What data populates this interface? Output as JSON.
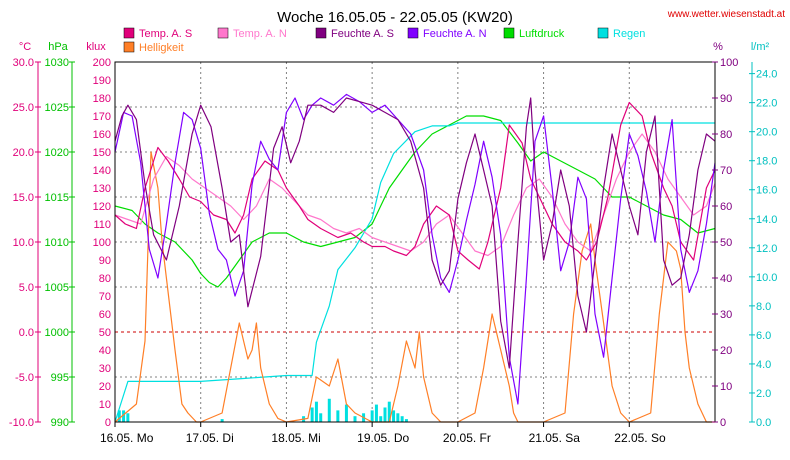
{
  "chart_data": {
    "type": "line",
    "title": "Woche 16.05.05 - 22.05.05 (KW20)",
    "source": "www.wetter.wiesenstadt.at",
    "x_tick_labels": [
      "16.05.  Mo",
      "17.05.  Di",
      "18.05.  Mi",
      "19.05.  Do",
      "20.05.  Fr",
      "21.05.  Sa",
      "22.05.  So"
    ],
    "x_range_days": [
      0,
      7
    ],
    "axes": {
      "temp": {
        "unit": "°C",
        "color": "#e0007a",
        "ticks": [
          "30.0",
          "25.0",
          "20.0",
          "15.0",
          "10.0",
          "5.0",
          "0.0",
          "-5.0",
          "-10.0"
        ],
        "range": [
          -10,
          30
        ]
      },
      "press": {
        "unit": "hPa",
        "color": "#00c000",
        "ticks": [
          "1030",
          "1025",
          "1020",
          "1015",
          "1010",
          "1005",
          "1000",
          "995",
          "990"
        ],
        "range": [
          990,
          1030
        ]
      },
      "light": {
        "unit": "klux",
        "color": "#e0007a",
        "ticks": [
          "200",
          "190",
          "180",
          "170",
          "160",
          "150",
          "140",
          "130",
          "120",
          "110",
          "100",
          "90",
          "80",
          "70",
          "60",
          "50",
          "40",
          "30",
          "20",
          "10",
          "0"
        ],
        "range": [
          0,
          200
        ]
      },
      "hum": {
        "unit": "%",
        "color": "#800080",
        "ticks": [
          "100",
          "90",
          "80",
          "70",
          "60",
          "50",
          "40",
          "30",
          "20",
          "10",
          "0"
        ],
        "range": [
          0,
          100
        ]
      },
      "rain": {
        "unit": "l/m²",
        "color": "#00c0c0",
        "ticks": [
          "24.0",
          "22.0",
          "20.0",
          "18.0",
          "16.0",
          "14.0",
          "12.0",
          "10.0",
          "8.0",
          "6.0",
          "4.0",
          "2.0",
          "0.0"
        ],
        "range": [
          0,
          24.8
        ]
      }
    },
    "grid": true,
    "legend": [
      {
        "name": "Temp. A. S",
        "color": "#e0007a"
      },
      {
        "name": "Temp. A. N",
        "color": "#ff77cc"
      },
      {
        "name": "Feuchte A. S",
        "color": "#800080"
      },
      {
        "name": "Feuchte A. N",
        "color": "#8000ff"
      },
      {
        "name": "Luftdruck",
        "color": "#00dd00"
      },
      {
        "name": "Regen",
        "color": "#00e0e0"
      },
      {
        "name": "Helligkeit",
        "color": "#ff7f27"
      }
    ],
    "series": [
      {
        "name": "Temp. A. S",
        "axis": "temp",
        "color": "#e0007a",
        "x": [
          0,
          0.12,
          0.25,
          0.35,
          0.5,
          0.62,
          0.75,
          0.87,
          1.0,
          1.15,
          1.3,
          1.4,
          1.5,
          1.6,
          1.75,
          1.9,
          2.0,
          2.15,
          2.25,
          2.4,
          2.5,
          2.6,
          2.75,
          2.9,
          3.0,
          3.15,
          3.25,
          3.4,
          3.5,
          3.6,
          3.75,
          3.9,
          4.0,
          4.12,
          4.25,
          4.35,
          4.5,
          4.6,
          4.75,
          4.85,
          5.0,
          5.1,
          5.25,
          5.4,
          5.5,
          5.62,
          5.75,
          5.9,
          6.0,
          6.15,
          6.25,
          6.4,
          6.5,
          6.6,
          6.75,
          6.9,
          7.0
        ],
        "y": [
          13,
          12,
          11.5,
          16,
          20.5,
          19,
          17,
          15,
          14.5,
          13,
          12.5,
          11,
          13,
          17,
          19,
          18,
          16,
          14,
          12.5,
          11.5,
          11,
          10.5,
          11,
          10,
          9.5,
          9.5,
          9,
          8.5,
          9.5,
          12,
          14,
          13,
          9,
          8,
          7,
          10,
          16,
          23,
          21,
          17,
          14,
          12,
          10,
          9,
          8,
          10,
          15,
          23,
          25.5,
          24,
          20,
          16,
          14,
          10,
          8,
          16,
          18
        ]
      },
      {
        "name": "Temp. A. N",
        "axis": "temp",
        "color": "#ff77cc",
        "x": [
          0,
          0.15,
          0.3,
          0.45,
          0.6,
          0.75,
          0.9,
          1.05,
          1.2,
          1.35,
          1.5,
          1.65,
          1.8,
          1.95,
          2.1,
          2.25,
          2.4,
          2.55,
          2.7,
          2.85,
          3.0,
          3.15,
          3.3,
          3.45,
          3.6,
          3.75,
          3.9,
          4.05,
          4.2,
          4.35,
          4.5,
          4.65,
          4.8,
          4.95,
          5.1,
          5.25,
          5.4,
          5.55,
          5.7,
          5.85,
          6.0,
          6.15,
          6.3,
          6.45,
          6.6,
          6.75,
          6.9,
          7.0
        ],
        "y": [
          13,
          12.5,
          12,
          17,
          19.5,
          18.5,
          17,
          16,
          15,
          14,
          12.5,
          14,
          17,
          16,
          14.5,
          13,
          12.5,
          11.5,
          11,
          11.5,
          10.5,
          10,
          9.5,
          9,
          10,
          12,
          13,
          11,
          9,
          8.5,
          9.5,
          13,
          16,
          17,
          15,
          12,
          10,
          9,
          13,
          17,
          20,
          22,
          20,
          17,
          15,
          13,
          14,
          16.5
        ]
      },
      {
        "name": "Feuchte A. S",
        "axis": "hum",
        "color": "#800080",
        "x": [
          0,
          0.08,
          0.15,
          0.25,
          0.35,
          0.45,
          0.6,
          0.75,
          0.9,
          1.0,
          1.12,
          1.25,
          1.35,
          1.45,
          1.55,
          1.7,
          1.85,
          1.95,
          2.05,
          2.15,
          2.25,
          2.4,
          2.55,
          2.7,
          2.85,
          3.0,
          3.15,
          3.3,
          3.45,
          3.6,
          3.7,
          3.8,
          3.9,
          4.0,
          4.1,
          4.2,
          4.3,
          4.4,
          4.5,
          4.6,
          4.7,
          4.8,
          4.85,
          4.9,
          5.0,
          5.1,
          5.2,
          5.3,
          5.4,
          5.5,
          5.6,
          5.7,
          5.8,
          5.9,
          6.0,
          6.1,
          6.2,
          6.3,
          6.4,
          6.5,
          6.6,
          6.7,
          6.8,
          6.9,
          7.0
        ],
        "y": [
          78,
          85,
          88,
          84,
          66,
          52,
          45,
          60,
          80,
          88,
          82,
          65,
          50,
          52,
          32,
          46,
          76,
          82,
          72,
          78,
          88,
          88,
          86,
          90,
          89,
          88,
          86,
          84,
          78,
          65,
          45,
          38,
          42,
          62,
          72,
          80,
          70,
          60,
          28,
          15,
          50,
          82,
          90,
          70,
          45,
          55,
          70,
          60,
          35,
          25,
          45,
          65,
          80,
          70,
          60,
          52,
          75,
          85,
          45,
          38,
          40,
          52,
          70,
          80,
          78
        ]
      },
      {
        "name": "Feuchte A. N",
        "axis": "hum",
        "color": "#8000ff",
        "x": [
          0,
          0.1,
          0.2,
          0.3,
          0.4,
          0.5,
          0.6,
          0.7,
          0.8,
          0.9,
          1.0,
          1.1,
          1.2,
          1.3,
          1.4,
          1.5,
          1.6,
          1.7,
          1.8,
          1.9,
          2.0,
          2.1,
          2.2,
          2.3,
          2.4,
          2.55,
          2.7,
          2.85,
          3.0,
          3.15,
          3.3,
          3.45,
          3.6,
          3.7,
          3.8,
          3.9,
          4.0,
          4.1,
          4.2,
          4.3,
          4.4,
          4.5,
          4.6,
          4.7,
          4.8,
          4.9,
          5.0,
          5.1,
          5.2,
          5.3,
          5.4,
          5.5,
          5.6,
          5.7,
          5.8,
          5.9,
          6.0,
          6.1,
          6.2,
          6.3,
          6.4,
          6.5,
          6.6,
          6.7,
          6.8,
          6.9,
          7.0
        ],
        "y": [
          75,
          86,
          85,
          72,
          48,
          40,
          55,
          72,
          86,
          84,
          76,
          58,
          48,
          45,
          35,
          42,
          66,
          78,
          73,
          70,
          86,
          90,
          84,
          88,
          90,
          88,
          91,
          89,
          86,
          88,
          84,
          80,
          70,
          52,
          40,
          36,
          45,
          56,
          66,
          78,
          68,
          52,
          18,
          5,
          40,
          78,
          85,
          65,
          42,
          50,
          68,
          62,
          30,
          18,
          40,
          62,
          80,
          74,
          64,
          50,
          70,
          84,
          48,
          36,
          42,
          55,
          72
        ]
      },
      {
        "name": "Luftdruck",
        "axis": "press",
        "color": "#00dd00",
        "x": [
          0,
          0.2,
          0.35,
          0.5,
          0.7,
          0.9,
          1.0,
          1.1,
          1.2,
          1.3,
          1.45,
          1.6,
          1.8,
          2.0,
          2.2,
          2.4,
          2.6,
          2.8,
          3.0,
          3.2,
          3.35,
          3.5,
          3.7,
          3.9,
          4.1,
          4.3,
          4.5,
          4.7,
          4.85,
          5.0,
          5.2,
          5.4,
          5.6,
          5.8,
          6.0,
          6.2,
          6.4,
          6.6,
          6.8,
          7.0
        ],
        "y": [
          1014,
          1013.5,
          1012,
          1011,
          1010,
          1008,
          1006.5,
          1005.5,
          1005,
          1006,
          1008,
          1010,
          1011,
          1011,
          1010,
          1009.5,
          1010,
          1010.5,
          1012,
          1016,
          1018,
          1020,
          1022,
          1023,
          1024,
          1024,
          1023.5,
          1021,
          1019,
          1020,
          1019,
          1018,
          1017,
          1015,
          1015,
          1014,
          1013,
          1012.5,
          1011,
          1011.5
        ]
      },
      {
        "name": "Regen",
        "axis": "rain",
        "color": "#00e0e0",
        "x": [
          0,
          0.15,
          0.5,
          1.0,
          1.5,
          2.0,
          2.3,
          2.35,
          2.5,
          2.6,
          2.8,
          3.0,
          3.1,
          3.25,
          3.5,
          3.7,
          3.9,
          4.0,
          4.5,
          5.0,
          6.0,
          7.0
        ],
        "y": [
          0,
          2.8,
          2.8,
          2.8,
          3.0,
          3.2,
          3.2,
          5.5,
          8,
          10.5,
          12,
          14,
          16.5,
          18.5,
          20,
          20.4,
          20.4,
          20.6,
          20.6,
          20.6,
          20.6,
          20.6
        ]
      },
      {
        "name": "Helligkeit",
        "axis": "light",
        "color": "#ff7f27",
        "x": [
          0,
          0.25,
          0.35,
          0.42,
          0.5,
          0.55,
          0.6,
          0.65,
          0.7,
          0.78,
          0.85,
          0.95,
          1.0,
          1.25,
          1.35,
          1.45,
          1.55,
          1.6,
          1.65,
          1.7,
          1.8,
          1.9,
          2.0,
          2.25,
          2.35,
          2.5,
          2.6,
          2.7,
          2.8,
          3.0,
          3.2,
          3.3,
          3.4,
          3.5,
          3.55,
          3.6,
          3.7,
          3.8,
          3.9,
          4.0,
          4.2,
          4.3,
          4.4,
          4.5,
          4.6,
          4.65,
          4.7,
          4.8,
          4.9,
          5.0,
          5.25,
          5.35,
          5.45,
          5.55,
          5.6,
          5.7,
          5.8,
          5.9,
          6.0,
          6.25,
          6.35,
          6.45,
          6.55,
          6.6,
          6.65,
          6.7,
          6.8,
          6.9,
          7.0
        ],
        "y": [
          0,
          10,
          45,
          150,
          130,
          100,
          80,
          60,
          40,
          10,
          5,
          0,
          0,
          5,
          30,
          55,
          35,
          40,
          55,
          30,
          10,
          2,
          0,
          2,
          25,
          20,
          35,
          10,
          5,
          0,
          0,
          20,
          45,
          30,
          50,
          25,
          5,
          0,
          0,
          0,
          5,
          30,
          60,
          40,
          20,
          5,
          0,
          0,
          0,
          0,
          5,
          60,
          95,
          110,
          90,
          55,
          20,
          5,
          0,
          5,
          60,
          100,
          95,
          85,
          50,
          30,
          10,
          0,
          0
        ]
      }
    ],
    "rain_bars": {
      "axis": "rain",
      "color": "#00e0e0",
      "x": [
        0.05,
        0.1,
        0.15,
        1.25,
        2.2,
        2.3,
        2.35,
        2.4,
        2.5,
        2.6,
        2.7,
        2.8,
        2.9,
        3.0,
        3.05,
        3.1,
        3.15,
        3.2,
        3.25,
        3.3,
        3.35,
        3.4
      ],
      "y": [
        0.8,
        0.8,
        0.6,
        0.2,
        0.4,
        1.0,
        1.4,
        0.6,
        1.6,
        0.8,
        1.2,
        0.4,
        0.6,
        0.8,
        1.2,
        0.4,
        1.0,
        1.4,
        0.8,
        0.6,
        0.4,
        0.2
      ]
    }
  }
}
